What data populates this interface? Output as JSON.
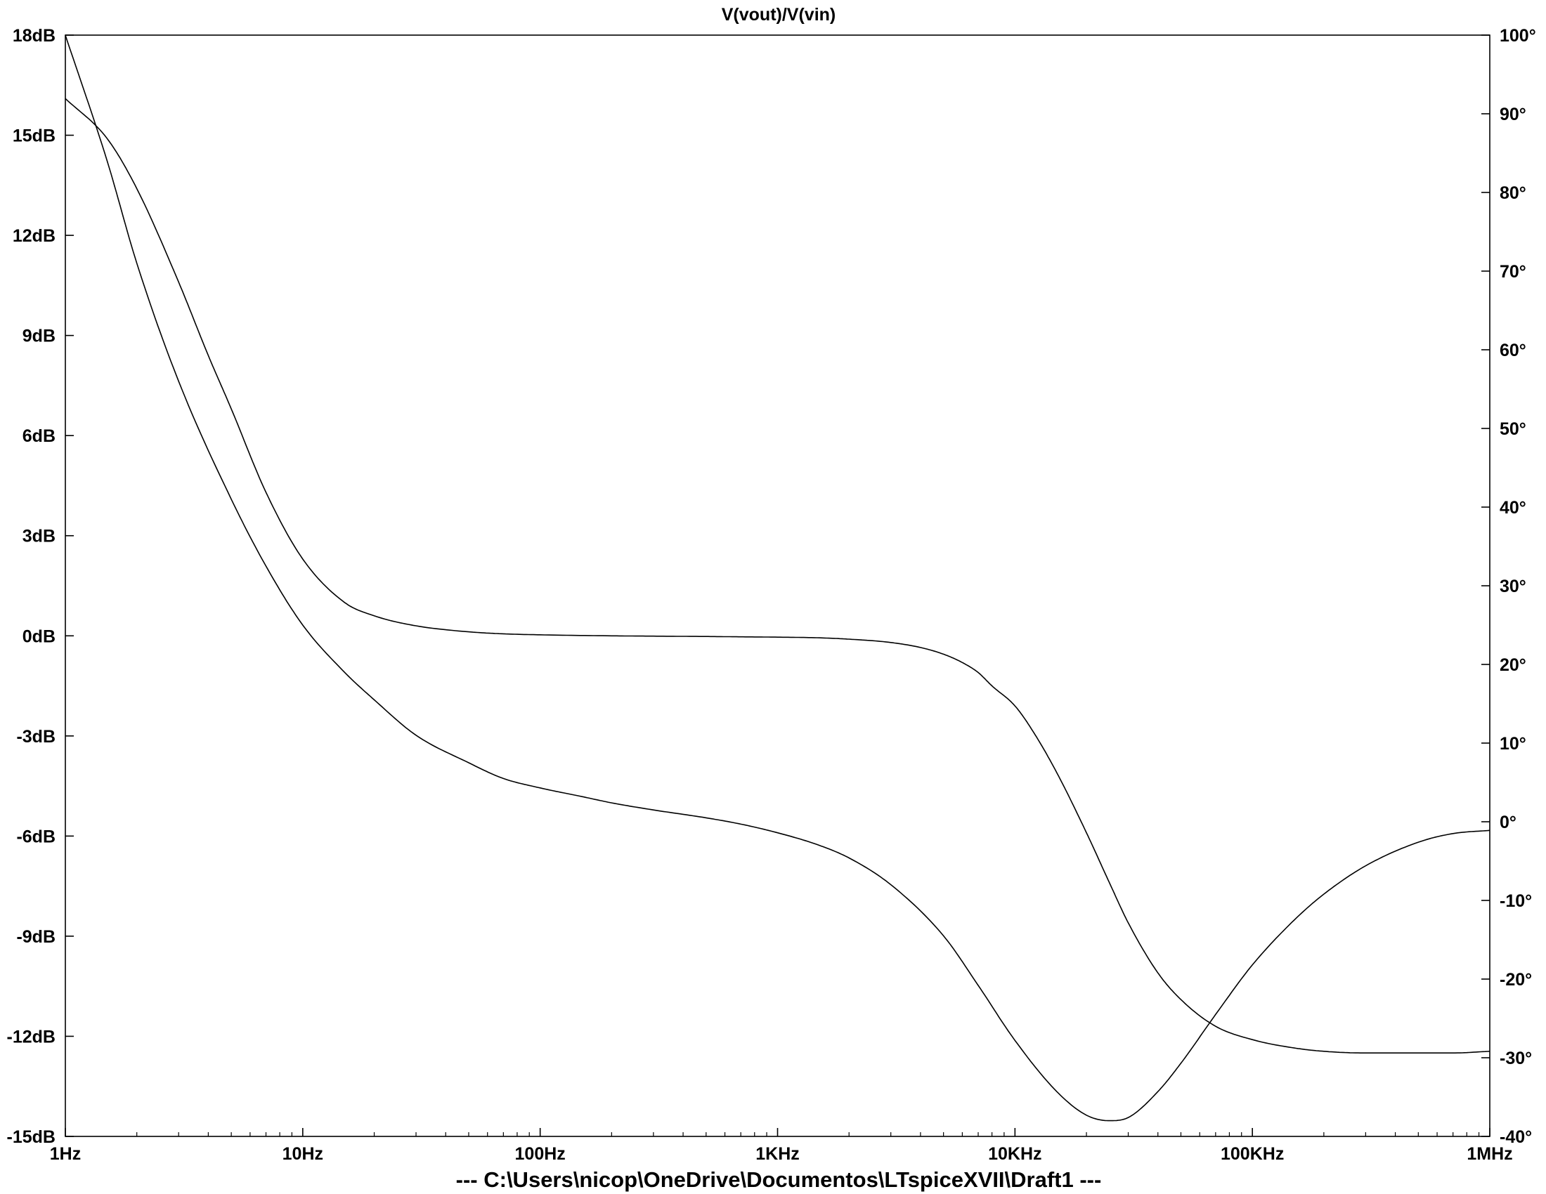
{
  "window": {
    "footer": "---  C:\\Users\\nicop\\OneDrive\\Documentos\\LTspiceXVII\\Draft1  ---"
  },
  "chart_data": {
    "type": "line",
    "title": "V(vout)/V(vin)",
    "x_scale": "log",
    "xlim": [
      1,
      1000000
    ],
    "x_ticks": [
      {
        "value": 1,
        "label": "1Hz"
      },
      {
        "value": 10,
        "label": "10Hz"
      },
      {
        "value": 100,
        "label": "100Hz"
      },
      {
        "value": 1000,
        "label": "1KHz"
      },
      {
        "value": 10000,
        "label": "10KHz"
      },
      {
        "value": 100000,
        "label": "100KHz"
      },
      {
        "value": 1000000,
        "label": "1MHz"
      }
    ],
    "ylim_left": [
      -15,
      18
    ],
    "y_ticks_left": [
      {
        "value": 18,
        "label": "18dB"
      },
      {
        "value": 15,
        "label": "15dB"
      },
      {
        "value": 12,
        "label": "12dB"
      },
      {
        "value": 9,
        "label": "9dB"
      },
      {
        "value": 6,
        "label": "6dB"
      },
      {
        "value": 3,
        "label": "3dB"
      },
      {
        "value": 0,
        "label": "0dB"
      },
      {
        "value": -3,
        "label": "-3dB"
      },
      {
        "value": -6,
        "label": "-6dB"
      },
      {
        "value": -9,
        "label": "-9dB"
      },
      {
        "value": -12,
        "label": "-12dB"
      },
      {
        "value": -15,
        "label": "-15dB"
      }
    ],
    "ylim_right": [
      -40,
      100
    ],
    "y_ticks_right": [
      {
        "value": 100,
        "label": "100°"
      },
      {
        "value": 90,
        "label": "90°"
      },
      {
        "value": 80,
        "label": "80°"
      },
      {
        "value": 70,
        "label": "70°"
      },
      {
        "value": 60,
        "label": "60°"
      },
      {
        "value": 50,
        "label": "50°"
      },
      {
        "value": 40,
        "label": "40°"
      },
      {
        "value": 30,
        "label": "30°"
      },
      {
        "value": 20,
        "label": "20°"
      },
      {
        "value": 10,
        "label": "10°"
      },
      {
        "value": 0,
        "label": "0°"
      },
      {
        "value": -10,
        "label": "-10°"
      },
      {
        "value": -20,
        "label": "-20°"
      },
      {
        "value": -30,
        "label": "-30°"
      },
      {
        "value": -40,
        "label": "-40°"
      }
    ],
    "grid": false,
    "line_color": "#000000",
    "series": [
      {
        "axis": "left",
        "x": [
          1,
          1.5,
          2,
          3,
          4,
          5,
          7,
          10,
          15,
          20,
          30,
          50,
          70,
          100,
          200,
          300,
          500,
          700,
          1000,
          1500,
          2000,
          3000,
          4000,
          5000,
          6000,
          7000,
          8000,
          10000,
          12000,
          15000,
          20000,
          25000,
          30000,
          40000,
          50000,
          70000,
          100000,
          150000,
          200000,
          300000,
          500000,
          700000,
          1000000
        ],
        "y": [
          16.1,
          14.9,
          13.4,
          10.6,
          8.4,
          6.8,
          4.3,
          2.3,
          1.0,
          0.6,
          0.3,
          0.12,
          0.06,
          0.03,
          0.0,
          -0.01,
          -0.02,
          -0.03,
          -0.04,
          -0.06,
          -0.1,
          -0.2,
          -0.35,
          -0.55,
          -0.8,
          -1.1,
          -1.5,
          -2.1,
          -2.9,
          -4.1,
          -5.9,
          -7.4,
          -8.6,
          -10.1,
          -10.9,
          -11.7,
          -12.1,
          -12.35,
          -12.45,
          -12.5,
          -12.5,
          -12.5,
          -12.45
        ]
      },
      {
        "axis": "right",
        "x": [
          1,
          1.5,
          2,
          3,
          5,
          7,
          10,
          15,
          20,
          30,
          50,
          70,
          100,
          150,
          200,
          300,
          500,
          700,
          1000,
          1500,
          2000,
          3000,
          5000,
          7000,
          10000,
          15000,
          20000,
          25000,
          30000,
          40000,
          50000,
          70000,
          100000,
          150000,
          200000,
          300000,
          500000,
          700000,
          1000000
        ],
        "y": [
          100,
          84,
          71,
          56,
          41,
          32.5,
          25,
          19,
          15.5,
          11,
          7.5,
          5.5,
          4.3,
          3.2,
          2.4,
          1.5,
          0.5,
          -0.3,
          -1.4,
          -3,
          -4.6,
          -8,
          -14.5,
          -20.8,
          -27.8,
          -34.3,
          -37.3,
          -38,
          -37.6,
          -34.3,
          -30.7,
          -24.5,
          -18.2,
          -12.5,
          -9.2,
          -5.6,
          -2.6,
          -1.5,
          -1.1
        ]
      }
    ]
  }
}
